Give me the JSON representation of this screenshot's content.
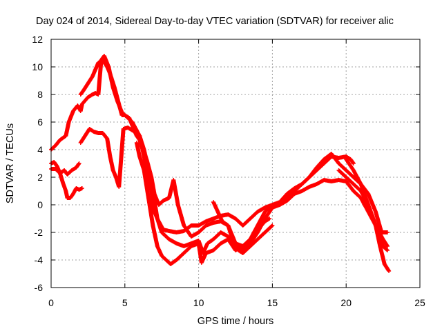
{
  "chart_data": {
    "type": "scatter",
    "title": "Day 024 of 2014, Sidereal Day-to-day VTEC variation (SDTVAR) for receiver alic",
    "xlabel": "GPS time / hours",
    "ylabel": "SDTVAR / TECUs",
    "xlim": [
      0,
      25
    ],
    "ylim": [
      -6,
      12
    ],
    "x_ticks": [
      "0",
      "5",
      "10",
      "15",
      "20",
      "25"
    ],
    "y_ticks": [
      "-6",
      "-4",
      "-2",
      "0",
      "2",
      "4",
      "6",
      "8",
      "10",
      "12"
    ],
    "grid": true,
    "marker": "plus",
    "color": "#ff0000",
    "series": [
      {
        "points": [
          [
            0.0,
            4.0
          ],
          [
            0.3,
            4.3
          ],
          [
            0.6,
            4.7
          ],
          [
            1.0,
            5.0
          ],
          [
            1.2,
            6.0
          ],
          [
            1.5,
            6.8
          ],
          [
            1.8,
            7.2
          ],
          [
            2.0,
            6.8
          ],
          [
            2.1,
            7.3
          ],
          [
            2.5,
            7.8
          ],
          [
            2.8,
            8.0
          ],
          [
            3.0,
            8.1
          ],
          [
            3.2,
            8.0
          ],
          [
            3.4,
            10.5
          ],
          [
            3.6,
            10.8
          ],
          [
            3.9,
            10.0
          ],
          [
            4.2,
            8.5
          ],
          [
            4.5,
            7.5
          ],
          [
            4.8,
            6.7
          ],
          [
            5.0,
            6.5
          ],
          [
            5.3,
            6.3
          ],
          [
            5.6,
            5.5
          ],
          [
            5.8,
            5.0
          ],
          [
            6.0,
            4.7
          ],
          [
            6.2,
            4.0
          ],
          [
            6.4,
            3.0
          ],
          [
            6.6,
            2.0
          ],
          [
            6.8,
            1.0
          ],
          [
            7.0,
            -0.5
          ],
          [
            7.2,
            -1.0
          ],
          [
            7.6,
            -1.8
          ],
          [
            8.0,
            -1.9
          ],
          [
            8.5,
            -2.0
          ],
          [
            9.0,
            -1.9
          ],
          [
            9.5,
            -1.5
          ],
          [
            10.0,
            -1.5
          ],
          [
            10.5,
            -1.2
          ],
          [
            11.0,
            -1.0
          ],
          [
            11.5,
            -0.8
          ],
          [
            12.0,
            -0.7
          ],
          [
            12.5,
            -1.0
          ],
          [
            13.0,
            -1.5
          ],
          [
            13.5,
            -1.0
          ],
          [
            14.0,
            -0.5
          ],
          [
            14.5,
            -0.2
          ],
          [
            15.0,
            0.0
          ],
          [
            15.5,
            0.2
          ],
          [
            16.0,
            0.8
          ],
          [
            16.5,
            1.2
          ],
          [
            17.0,
            1.5
          ],
          [
            17.5,
            2.0
          ],
          [
            18.0,
            2.5
          ],
          [
            18.5,
            3.0
          ],
          [
            19.0,
            3.5
          ],
          [
            19.5,
            3.4
          ],
          [
            20.0,
            3.5
          ],
          [
            20.3,
            3.3
          ],
          [
            20.5,
            3.0
          ]
        ]
      },
      {
        "points": [
          [
            2.0,
            8.0
          ],
          [
            2.2,
            8.3
          ],
          [
            2.5,
            8.8
          ],
          [
            2.8,
            9.3
          ],
          [
            3.0,
            9.8
          ],
          [
            3.2,
            10.3
          ],
          [
            3.5,
            10.5
          ],
          [
            3.8,
            10.0
          ],
          [
            4.0,
            9.5
          ],
          [
            4.3,
            8.5
          ],
          [
            4.6,
            7.3
          ],
          [
            4.8,
            6.5
          ],
          [
            5.0,
            6.5
          ],
          [
            5.5,
            6.0
          ],
          [
            6.0,
            5.0
          ],
          [
            6.2,
            4.2
          ],
          [
            6.5,
            3.2
          ],
          [
            6.8,
            2.0
          ],
          [
            7.0,
            0.8
          ],
          [
            7.3,
            0.0
          ],
          [
            7.6,
            0.3
          ],
          [
            8.0,
            0.5
          ],
          [
            8.3,
            1.8
          ],
          [
            8.6,
            0.0
          ],
          [
            9.0,
            -1.5
          ],
          [
            9.5,
            -2.3
          ],
          [
            10.0,
            -2.0
          ],
          [
            10.5,
            -1.5
          ],
          [
            11.0,
            -1.3
          ],
          [
            11.5,
            -1.2
          ],
          [
            12.0,
            -1.5
          ],
          [
            12.5,
            -2.8
          ],
          [
            13.0,
            -3.0
          ],
          [
            13.5,
            -2.5
          ],
          [
            14.0,
            -1.5
          ],
          [
            14.5,
            -0.5
          ],
          [
            15.0,
            0.0
          ],
          [
            15.5,
            0.0
          ],
          [
            16.0,
            0.3
          ],
          [
            16.5,
            0.8
          ],
          [
            17.0,
            1.0
          ],
          [
            17.5,
            1.3
          ],
          [
            18.0,
            1.5
          ],
          [
            18.5,
            1.8
          ],
          [
            19.0,
            1.7
          ],
          [
            19.5,
            1.8
          ],
          [
            20.0,
            1.7
          ],
          [
            20.5,
            1.0
          ],
          [
            21.0,
            0.5
          ],
          [
            21.5,
            -0.5
          ],
          [
            22.0,
            -1.5
          ],
          [
            22.5,
            -2.5
          ],
          [
            22.8,
            -3.0
          ]
        ]
      },
      {
        "points": [
          [
            2.0,
            4.5
          ],
          [
            2.3,
            5.0
          ],
          [
            2.6,
            5.5
          ],
          [
            2.9,
            5.3
          ],
          [
            3.2,
            5.2
          ],
          [
            3.5,
            5.2
          ],
          [
            3.8,
            4.8
          ],
          [
            4.0,
            3.5
          ],
          [
            4.2,
            2.5
          ],
          [
            4.4,
            2.0
          ],
          [
            4.6,
            1.3
          ],
          [
            4.9,
            5.5
          ],
          [
            5.2,
            5.6
          ],
          [
            5.5,
            5.4
          ],
          [
            5.8,
            5.2
          ],
          [
            6.0,
            5.0
          ],
          [
            6.3,
            4.0
          ],
          [
            6.6,
            2.5
          ],
          [
            6.9,
            1.0
          ],
          [
            7.2,
            -1.0
          ],
          [
            7.5,
            -2.0
          ],
          [
            7.8,
            -2.3
          ],
          [
            8.0,
            -2.5
          ],
          [
            8.5,
            -2.8
          ],
          [
            9.0,
            -3.0
          ],
          [
            9.5,
            -2.8
          ],
          [
            10.0,
            -2.6
          ],
          [
            10.3,
            -3.5
          ],
          [
            10.6,
            -2.8
          ],
          [
            11.0,
            -2.5
          ],
          [
            11.5,
            -2.0
          ],
          [
            12.0,
            -2.3
          ],
          [
            12.5,
            -3.0
          ],
          [
            13.0,
            -3.3
          ],
          [
            13.5,
            -2.8
          ],
          [
            14.0,
            -2.0
          ],
          [
            14.5,
            -1.0
          ],
          [
            15.0,
            -0.2
          ],
          [
            15.5,
            0.0
          ],
          [
            16.0,
            0.5
          ],
          [
            16.5,
            1.0
          ],
          [
            17.0,
            1.5
          ],
          [
            17.5,
            2.0
          ],
          [
            18.0,
            2.7
          ],
          [
            18.5,
            3.3
          ],
          [
            19.0,
            3.7
          ],
          [
            19.5,
            3.0
          ],
          [
            20.0,
            2.5
          ],
          [
            20.5,
            2.0
          ],
          [
            21.0,
            1.5
          ],
          [
            21.5,
            0.0
          ],
          [
            22.0,
            -1.5
          ],
          [
            22.5,
            -3.0
          ],
          [
            22.8,
            -3.3
          ]
        ]
      },
      {
        "points": [
          [
            0.0,
            3.0
          ],
          [
            0.2,
            3.1
          ],
          [
            0.4,
            2.8
          ],
          [
            0.6,
            2.3
          ],
          [
            0.8,
            1.6
          ],
          [
            1.0,
            1.0
          ],
          [
            1.1,
            0.5
          ],
          [
            1.3,
            0.5
          ],
          [
            1.5,
            0.8
          ],
          [
            1.7,
            1.2
          ],
          [
            1.9,
            1.1
          ],
          [
            2.1,
            1.2
          ]
        ]
      },
      {
        "points": [
          [
            0.0,
            2.6
          ],
          [
            0.3,
            2.6
          ],
          [
            0.6,
            2.3
          ],
          [
            0.9,
            2.5
          ],
          [
            1.1,
            2.2
          ],
          [
            1.4,
            2.5
          ],
          [
            1.7,
            2.7
          ],
          [
            1.9,
            3.0
          ]
        ]
      },
      {
        "points": [
          [
            5.8,
            4.5
          ],
          [
            6.0,
            3.5
          ],
          [
            6.3,
            2.5
          ],
          [
            6.6,
            0.5
          ],
          [
            6.9,
            -1.5
          ],
          [
            7.2,
            -3.0
          ],
          [
            7.5,
            -3.7
          ],
          [
            7.8,
            -4.0
          ],
          [
            8.1,
            -4.3
          ],
          [
            8.5,
            -4.0
          ],
          [
            9.0,
            -3.5
          ],
          [
            9.5,
            -3.0
          ],
          [
            10.0,
            -2.8
          ],
          [
            10.2,
            -4.2
          ],
          [
            10.5,
            -3.5
          ],
          [
            11.0,
            -3.3
          ],
          [
            11.5,
            -2.8
          ],
          [
            12.0,
            -2.5
          ],
          [
            12.5,
            -3.3
          ],
          [
            13.0,
            -3.0
          ],
          [
            13.5,
            -2.5
          ],
          [
            14.0,
            -1.8
          ],
          [
            14.5,
            -1.2
          ],
          [
            14.8,
            -1.0
          ]
        ]
      },
      {
        "points": [
          [
            19.5,
            2.5
          ],
          [
            20.0,
            2.0
          ],
          [
            20.5,
            1.5
          ],
          [
            21.0,
            1.0
          ],
          [
            21.5,
            0.0
          ],
          [
            22.0,
            -1.5
          ],
          [
            22.3,
            -3.0
          ],
          [
            22.6,
            -4.3
          ],
          [
            22.9,
            -4.8
          ]
        ]
      },
      {
        "points": [
          [
            20.0,
            3.3
          ],
          [
            20.5,
            2.5
          ],
          [
            21.0,
            1.5
          ],
          [
            21.5,
            0.8
          ],
          [
            22.0,
            -0.5
          ],
          [
            22.4,
            -2.0
          ],
          [
            22.8,
            -2.0
          ]
        ]
      },
      {
        "points": [
          [
            11.0,
            0.2
          ],
          [
            11.3,
            -0.5
          ],
          [
            11.6,
            -1.2
          ],
          [
            12.0,
            -1.5
          ],
          [
            12.3,
            -2.5
          ],
          [
            12.7,
            -3.3
          ],
          [
            13.0,
            -3.5
          ],
          [
            13.5,
            -3.0
          ],
          [
            14.0,
            -2.5
          ],
          [
            14.5,
            -2.0
          ],
          [
            15.0,
            -1.5
          ]
        ]
      }
    ]
  }
}
